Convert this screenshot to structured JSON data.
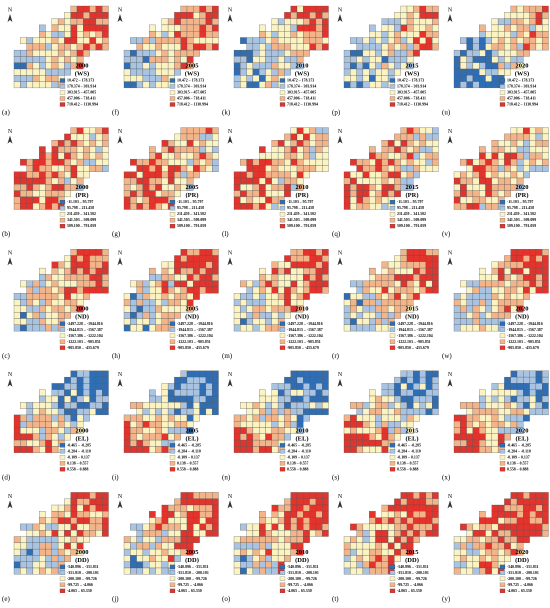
{
  "years": [
    "2000",
    "2005",
    "2010",
    "2015",
    "2020"
  ],
  "palette": [
    "#2f6eb5",
    "#a9c4e2",
    "#fbf3c1",
    "#f3b48a",
    "#e2332c"
  ],
  "north": "N",
  "indicators": [
    {
      "code": "(WS)",
      "legend": [
        "10.472 – 178.373",
        "178.374 – 303.914",
        "303.915 – 457.005",
        "457.006 – 718.411",
        "718.412 – 1130.994"
      ]
    },
    {
      "code": "(PR)",
      "legend": [
        "-11.103 – 95.797",
        "95.798 – 211.458",
        "211.459 – 341.502",
        "341.503 – 509.099",
        "509.100 – 791.059"
      ]
    },
    {
      "code": "(ND)",
      "legend": [
        "-2497.228 – -1944.816",
        "-1944.815 – -1567.387",
        "-1567.386 – -1222.104",
        "-1222.103 – -905.851",
        "-905.850 – -455.679"
      ]
    },
    {
      "code": "(EL)",
      "legend": [
        "-0.465 – -0.285",
        "-0.284 – -0.110",
        "-0.109 – 0.137",
        "0.138 – 0.557",
        "0.558 – 0.888"
      ]
    },
    {
      "code": "(DD)",
      "legend": [
        "-540.896 – -351.811",
        "-351.810 – -200.101",
        "-200.100 – -99.726",
        "-99.725 – -4.066",
        "-4.065 – 65.330"
      ]
    }
  ],
  "panels": [
    [
      "(a)",
      "(f)",
      "(k)",
      "(p)",
      "(u)"
    ],
    [
      "(b)",
      "(g)",
      "(l)",
      "(q)",
      "(v)"
    ],
    [
      "(c)",
      "(h)",
      "(m)",
      "(r)",
      "(w)"
    ],
    [
      "(d)",
      "(i)",
      "(n)",
      "(s)",
      "(x)"
    ],
    [
      "(e)",
      "(j)",
      "(o)",
      "(t)",
      "(y)"
    ]
  ]
}
